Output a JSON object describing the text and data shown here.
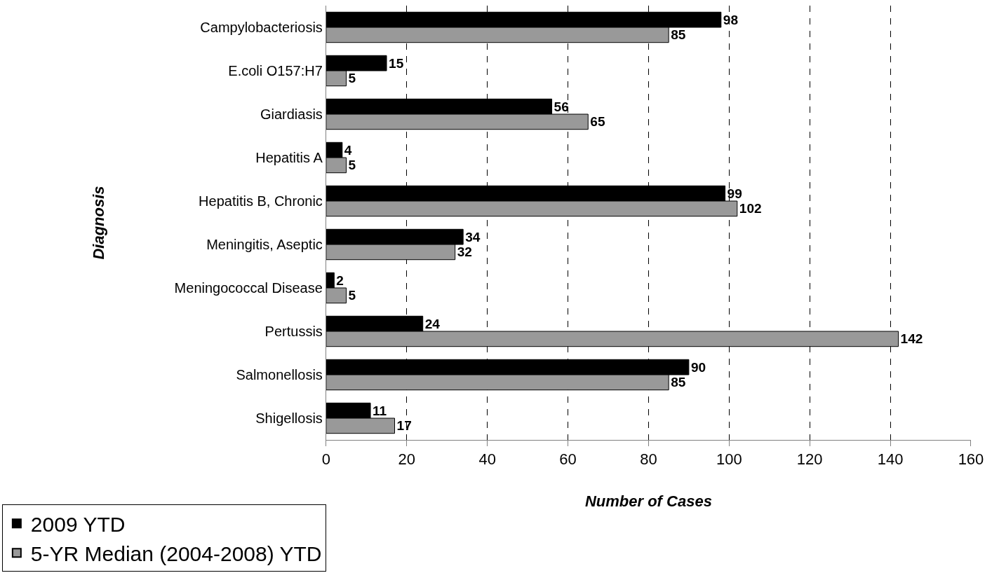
{
  "chart_data": {
    "type": "bar",
    "orientation": "horizontal",
    "xlabel": "Number of Cases",
    "ylabel": "Diagnosis",
    "categories": [
      "Campylobacteriosis",
      "E.coli O157:H7",
      "Giardiasis",
      "Hepatitis A",
      "Hepatitis B, Chronic",
      "Meningitis, Aseptic",
      "Meningococcal Disease",
      "Pertussis",
      "Salmonellosis",
      "Shigellosis"
    ],
    "series": [
      {
        "name": "2009 YTD",
        "color": "#000000",
        "values": [
          98,
          15,
          56,
          4,
          99,
          34,
          2,
          24,
          90,
          11
        ]
      },
      {
        "name": "5-YR Median (2004-2008) YTD",
        "color": "#999999",
        "values": [
          85,
          5,
          65,
          5,
          102,
          32,
          5,
          142,
          85,
          17
        ]
      }
    ],
    "xlim": [
      0,
      160
    ],
    "xticks": [
      0,
      20,
      40,
      60,
      80,
      100,
      120,
      140,
      160
    ],
    "grid": "x",
    "line_style": "dashed",
    "legend": "bottom left",
    "data_labels": true
  }
}
